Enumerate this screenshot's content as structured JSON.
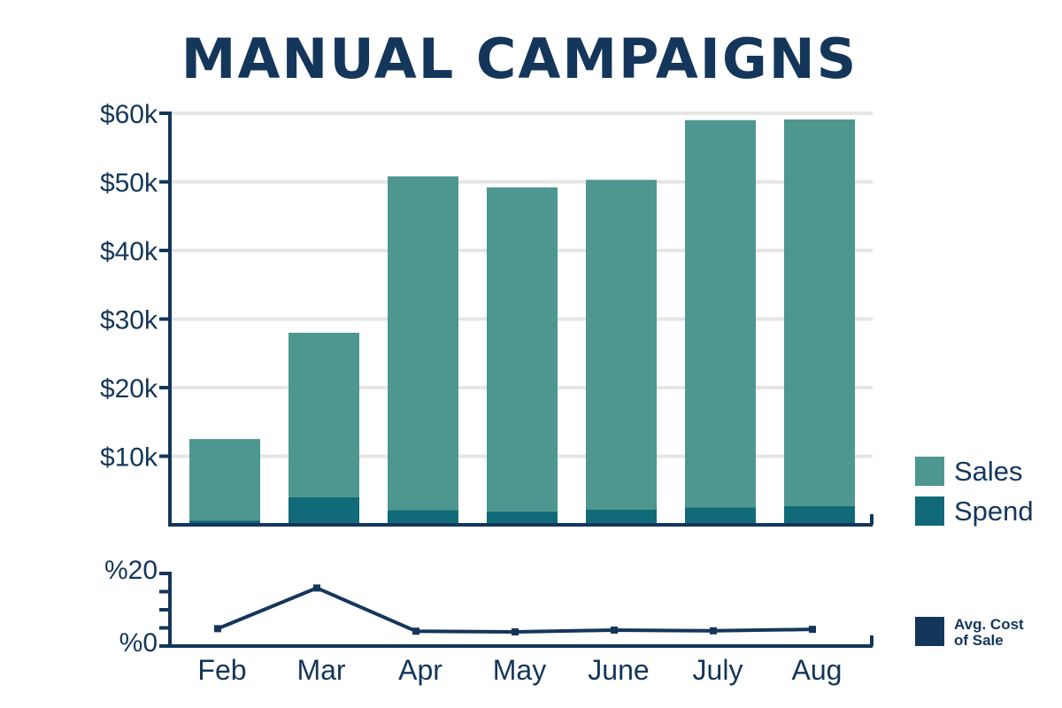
{
  "chart_data": {
    "type": "bar",
    "title": "MANUAL CAMPAIGNS",
    "categories": [
      "Feb",
      "Mar",
      "Apr",
      "May",
      "June",
      "July",
      "Aug"
    ],
    "series": [
      {
        "name": "Sales",
        "values": [
          12500,
          28000,
          50800,
          49200,
          50300,
          59000,
          59100
        ]
      },
      {
        "name": "Spend",
        "values": [
          600,
          4000,
          2100,
          1900,
          2200,
          2500,
          2700
        ]
      }
    ],
    "ylim": [
      0,
      60000
    ],
    "yticks": [
      "$10k",
      "$20k",
      "$30k",
      "$40k",
      "$50k",
      "$60k"
    ],
    "ytick_values": [
      10000,
      20000,
      30000,
      40000,
      50000,
      60000
    ],
    "xlabel": "",
    "ylabel": "",
    "legend": [
      "Sales",
      "Spend"
    ],
    "legend_position": "right",
    "grid": true,
    "secondary": {
      "type": "line",
      "name_line1": "Avg. Cost",
      "name_line2": "of Sale",
      "values": [
        4.8,
        16,
        4.1,
        3.9,
        4.4,
        4.2,
        4.6
      ],
      "ylim": [
        0,
        20
      ],
      "yticks": [
        "%0",
        "%20"
      ]
    },
    "colors": {
      "sales": "#4e9790",
      "spend": "#116a78",
      "line": "#14365a",
      "axis": "#14365a",
      "grid": "#e6e6e3",
      "text": "#14365a"
    }
  }
}
